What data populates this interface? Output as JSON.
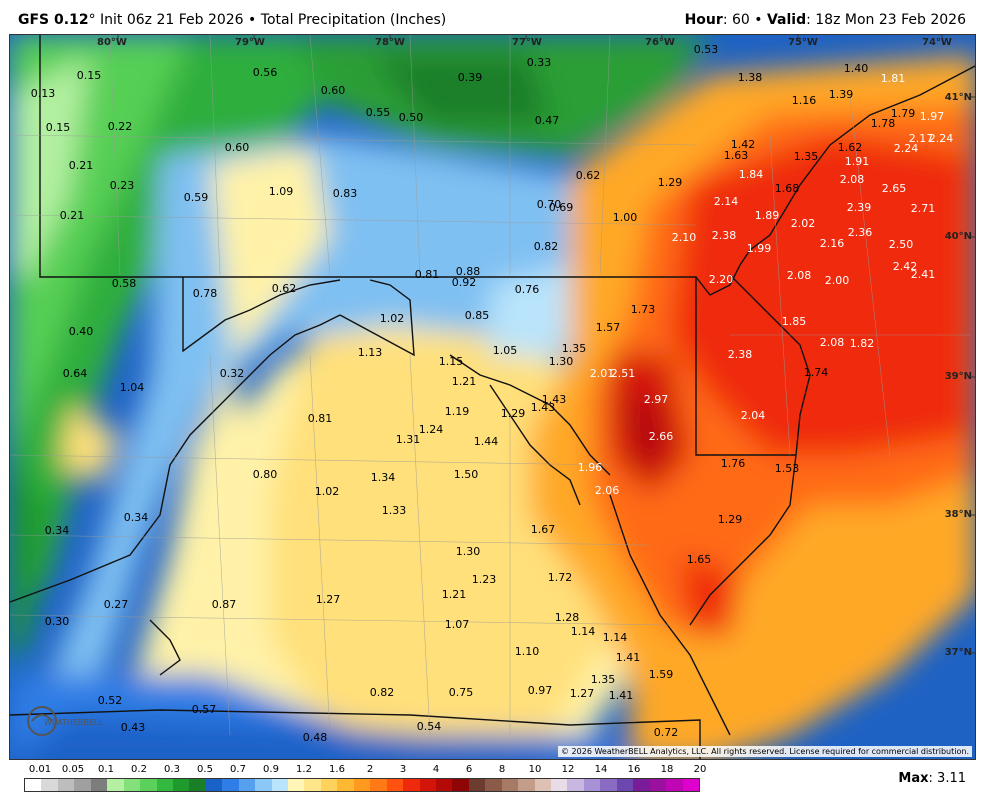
{
  "header": {
    "model": "GFS 0.12",
    "degree": "°",
    "init": "Init 06z 21 Feb 2026",
    "bullet": "•",
    "product": "Total Precipitation (Inches)",
    "hour_label": "Hour",
    "hour_value": ": 60",
    "valid_label": "Valid",
    "valid_value": ": 18z Mon 23 Feb 2026"
  },
  "coords": {
    "lon": [
      "80°W",
      "79°W",
      "78°W",
      "77°W",
      "76°W",
      "75°W",
      "74°W"
    ],
    "lat": [
      "41°N",
      "40°N",
      "39°N",
      "38°N",
      "37°N"
    ]
  },
  "values": [
    "0.13",
    "0.15",
    "0.15",
    "0.22",
    "0.21",
    "0.23",
    "0.21",
    "0.56",
    "0.60",
    "0.59",
    "0.60",
    "0.55",
    "0.50",
    "0.39",
    "0.33",
    "0.47",
    "0.53",
    "1.09",
    "0.83",
    "0.62",
    "0.70",
    "0.69",
    "1.00",
    "0.82",
    "0.58",
    "0.78",
    "0.62",
    "0.81",
    "0.88",
    "0.92",
    "0.76",
    "0.85",
    "1.02",
    "1.13",
    "1.05",
    "1.15",
    "1.21",
    "1.35",
    "1.30",
    "1.57",
    "1.73",
    "2.01",
    "2.51",
    "0.40",
    "0.64",
    "1.04",
    "0.32",
    "0.81",
    "1.19",
    "1.29",
    "1.43",
    "1.43",
    "1.31",
    "1.24",
    "1.44",
    "2.97",
    "2.66",
    "1.96",
    "1.50",
    "1.34",
    "0.80",
    "1.02",
    "1.33",
    "2.06",
    "1.67",
    "0.34",
    "0.34",
    "1.30",
    "1.23",
    "1.72",
    "1.21",
    "1.27",
    "0.87",
    "0.27",
    "0.30",
    "1.07",
    "1.28",
    "1.14",
    "1.14",
    "1.10",
    "1.41",
    "1.35",
    "0.97",
    "1.27",
    "1.41",
    "1.59",
    "0.82",
    "0.75",
    "0.52",
    "0.57",
    "0.43",
    "0.48",
    "0.54",
    "0.72",
    "1.38",
    "1.40",
    "1.81",
    "1.16",
    "1.39",
    "1.79",
    "1.97",
    "1.78",
    "1.42",
    "1.63",
    "1.35",
    "1.62",
    "2.24",
    "2.17",
    "2.24",
    "1.84",
    "1.91",
    "1.29",
    "1.68",
    "2.08",
    "2.65",
    "2.14",
    "1.89",
    "2.02",
    "2.39",
    "2.71",
    "2.10",
    "2.38",
    "1.99",
    "2.16",
    "2.36",
    "2.50",
    "2.20",
    "2.08",
    "2.00",
    "2.42",
    "2.41",
    "1.85",
    "2.08",
    "1.82",
    "2.38",
    "1.74",
    "2.04",
    "1.76",
    "1.53",
    "1.29",
    "1.65"
  ],
  "copyright": "© 2026 WeatherBELL Analytics, LLC. All rights reserved. License required for commercial distribution.",
  "logo_text": "WEATHERBELL",
  "legend": {
    "labels": [
      "0.01",
      "0.05",
      "0.1",
      "0.2",
      "0.3",
      "0.5",
      "0.7",
      "0.9",
      "1.2",
      "1.6",
      "2",
      "3",
      "4",
      "6",
      "8",
      "10",
      "12",
      "14",
      "16",
      "18",
      "20"
    ],
    "colors": [
      "#ffffff",
      "#d9d9d9",
      "#bdbdbd",
      "#a0a0a0",
      "#7d7d7d",
      "#b3f0a1",
      "#84e07a",
      "#5bd05a",
      "#33b940",
      "#1f9a2c",
      "#1b7f2a",
      "#1a62c8",
      "#2f7de6",
      "#56a0f0",
      "#8cc8f7",
      "#b9e4fb",
      "#fff6b8",
      "#ffe68a",
      "#ffd25c",
      "#ffb833",
      "#ff9a1f",
      "#ff7a14",
      "#ff520f",
      "#ef2a0c",
      "#d41309",
      "#b30a07",
      "#8f0506",
      "#6b3c2f",
      "#8b5a48",
      "#a77a66",
      "#c49c8a",
      "#dcc1b4",
      "#e8dde6",
      "#c8b7e0",
      "#a891d4",
      "#8a6bc4",
      "#6d47b0",
      "#7a1c9a",
      "#9b109f",
      "#bf06b5",
      "#de00cc"
    ]
  },
  "max_label": "Max",
  "max_value": ": 3.11"
}
